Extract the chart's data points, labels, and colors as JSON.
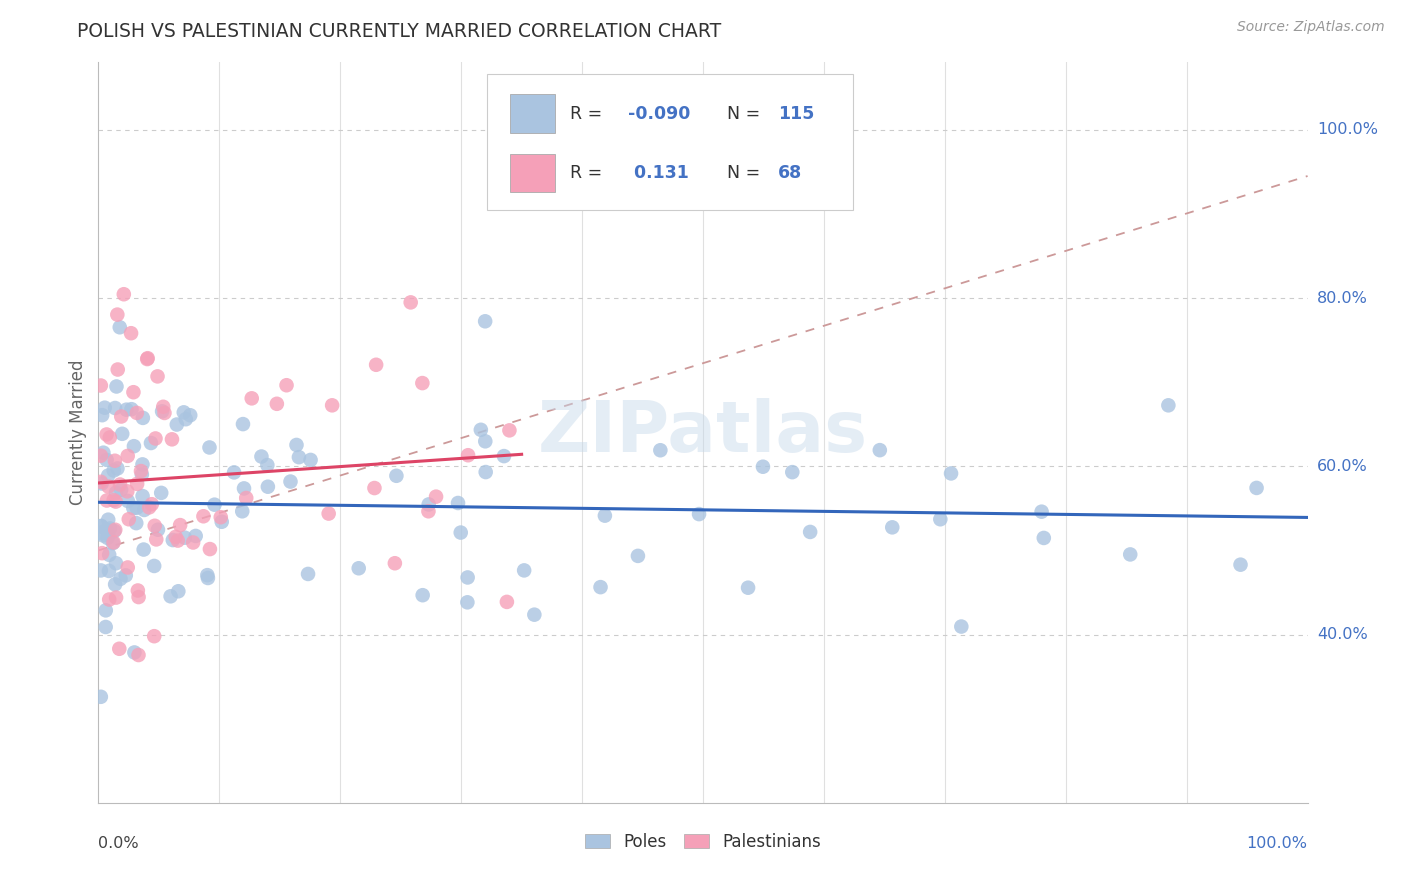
{
  "title": "POLISH VS PALESTINIAN CURRENTLY MARRIED CORRELATION CHART",
  "source": "Source: ZipAtlas.com",
  "ylabel": "Currently Married",
  "poles_color": "#aac4e0",
  "palestinians_color": "#f5a0b8",
  "poles_line_color": "#3366bb",
  "palestinians_line_color": "#dd4466",
  "diagonal_color": "#ddaaaa",
  "background_color": "#ffffff",
  "watermark": "ZIPatlas",
  "poles_R": -0.09,
  "poles_N": 115,
  "palestinians_R": 0.131,
  "palestinians_N": 68,
  "title_color": "#333333",
  "source_color": "#999999",
  "right_label_color": "#4472c4",
  "legend_text_dark": "#333333",
  "legend_val_color": "#4472c4",
  "grid_color": "#e0e0e0",
  "grid_dash_color": "#cccccc",
  "ytick_vals": [
    0.4,
    0.6,
    0.8,
    1.0
  ],
  "ytick_labels": [
    "40.0%",
    "60.0%",
    "80.0%",
    "100.0%"
  ]
}
